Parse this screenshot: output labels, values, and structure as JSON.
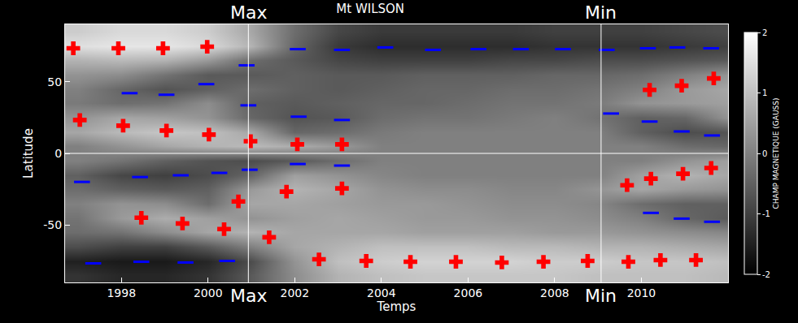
{
  "chart_data": {
    "type": "heatmap",
    "title": "Mt WILSON",
    "x_label": "Temps",
    "y_label": "Latitude",
    "xlim": [
      1996.7,
      2012.0
    ],
    "ylim": [
      -90,
      90
    ],
    "xticks": [
      1998,
      2000,
      2002,
      2004,
      2006,
      2008,
      2010
    ],
    "yticks": [
      -50,
      0,
      50
    ],
    "hline": 0,
    "epochs": [
      {
        "label": "Max",
        "x": 2000.93
      },
      {
        "label": "Min",
        "x": 2009.07
      }
    ],
    "heatmap": {
      "x": [
        1997,
        1998,
        1999,
        2000,
        2001,
        2002,
        2003,
        2004,
        2005,
        2006,
        2007,
        2008,
        2009,
        2010,
        2011,
        2012
      ],
      "y": [
        -85,
        -75,
        -65,
        -55,
        -45,
        -35,
        -25,
        -15,
        -5,
        5,
        15,
        25,
        35,
        45,
        55,
        65,
        75,
        85
      ],
      "z": [
        [
          -1.2,
          -1.4,
          -1.4,
          -1.2,
          -0.6,
          0.2,
          0.8,
          1.0,
          1.1,
          1.1,
          1.1,
          1.1,
          1.0,
          1.0,
          1.0,
          0.9
        ],
        [
          -1.5,
          -1.6,
          -1.6,
          -1.4,
          -0.8,
          0.3,
          1.0,
          1.2,
          1.3,
          1.3,
          1.3,
          1.2,
          1.2,
          1.1,
          1.1,
          1.0
        ],
        [
          -0.8,
          -1.0,
          -1.0,
          -0.6,
          0.0,
          0.6,
          0.8,
          1.0,
          1.0,
          1.0,
          0.9,
          0.9,
          0.8,
          0.8,
          0.7,
          0.6
        ],
        [
          -0.3,
          -0.2,
          0.2,
          0.6,
          0.8,
          0.6,
          0.6,
          0.6,
          0.5,
          0.5,
          0.5,
          0.4,
          0.4,
          0.3,
          0.2,
          0.1
        ],
        [
          -0.2,
          0.4,
          0.7,
          0.5,
          0.3,
          0.5,
          0.6,
          0.5,
          0.4,
          0.4,
          0.3,
          0.3,
          0.2,
          0.0,
          -0.4,
          -0.6
        ],
        [
          0.0,
          0.3,
          0.2,
          -0.3,
          0.6,
          0.6,
          0.5,
          0.4,
          0.4,
          0.3,
          0.2,
          0.2,
          0.1,
          -0.3,
          -0.5,
          -0.5
        ],
        [
          -0.3,
          -0.5,
          -0.6,
          -0.5,
          0.4,
          0.8,
          0.6,
          0.3,
          0.2,
          0.2,
          0.1,
          0.1,
          0.3,
          0.6,
          0.4,
          0.3
        ],
        [
          -0.5,
          -0.9,
          -1.0,
          -0.8,
          -0.4,
          0.5,
          0.3,
          0.1,
          0.0,
          0.0,
          0.0,
          0.0,
          0.0,
          0.5,
          0.8,
          0.6
        ],
        [
          0.0,
          -0.2,
          -0.5,
          -0.7,
          -0.8,
          -0.6,
          -0.3,
          0.0,
          0.0,
          0.0,
          0.0,
          0.0,
          0.0,
          0.0,
          0.3,
          0.5
        ],
        [
          0.0,
          0.3,
          0.6,
          0.8,
          0.9,
          0.7,
          0.4,
          0.0,
          0.0,
          0.0,
          0.0,
          0.0,
          0.0,
          0.0,
          -0.3,
          -0.4
        ],
        [
          0.6,
          0.9,
          1.1,
          1.0,
          0.6,
          -0.4,
          -0.3,
          -0.1,
          0.0,
          0.0,
          0.0,
          0.0,
          0.0,
          -0.5,
          -0.8,
          -0.7
        ],
        [
          0.3,
          0.6,
          0.5,
          0.3,
          -0.4,
          -0.7,
          -0.6,
          -0.3,
          -0.2,
          -0.2,
          -0.1,
          0.0,
          -0.2,
          -0.5,
          -0.4,
          0.3
        ],
        [
          -0.1,
          -0.3,
          -0.2,
          0.2,
          -0.5,
          -0.6,
          -0.5,
          -0.4,
          -0.4,
          -0.3,
          -0.2,
          -0.2,
          -0.1,
          0.3,
          0.4,
          0.5
        ],
        [
          0.0,
          -0.4,
          -0.7,
          -0.5,
          -0.3,
          -0.5,
          -0.6,
          -0.5,
          -0.4,
          -0.4,
          -0.3,
          -0.3,
          -0.2,
          0.0,
          0.4,
          0.6
        ],
        [
          0.3,
          0.2,
          -0.2,
          -0.6,
          -0.6,
          -0.5,
          -0.6,
          -0.6,
          -0.5,
          -0.5,
          -0.5,
          -0.4,
          -0.4,
          -0.3,
          0.0,
          0.3
        ],
        [
          0.8,
          0.9,
          0.8,
          0.4,
          -0.3,
          -0.6,
          -0.9,
          -1.0,
          -1.0,
          -1.0,
          -0.9,
          -0.9,
          -0.8,
          -0.8,
          -0.7,
          -0.6
        ],
        [
          1.5,
          1.6,
          1.6,
          1.4,
          0.8,
          -0.4,
          -1.1,
          -1.3,
          -1.3,
          -1.3,
          -1.3,
          -1.2,
          -1.2,
          -1.2,
          -1.1,
          -1.0
        ],
        [
          1.2,
          1.4,
          1.4,
          1.2,
          0.6,
          -0.3,
          -0.9,
          -1.1,
          -1.1,
          -1.1,
          -1.1,
          -1.0,
          -1.0,
          -1.0,
          -0.9,
          -0.8
        ]
      ]
    },
    "colorbar_label": "CHAMP MAGNETIQUE (GAUSS)",
    "colorbar_range": [
      -2,
      2
    ],
    "colorbar_ticks": [
      -2,
      -1,
      0,
      1,
      2
    ],
    "series": [
      {
        "type": "scatter",
        "color": "#ff0000",
        "marker": "cross",
        "x": [
          1996.89,
          1997.04,
          1997.93,
          1998.04,
          1998.96,
          1999.04,
          1999.98,
          2000.02,
          2000.98,
          2002.06,
          2003.09,
          1998.46,
          1999.41,
          2000.37,
          2000.7,
          2001.41,
          2001.81,
          2003.09,
          2002.56,
          2003.65,
          2004.67,
          2005.72,
          2006.78,
          2007.74,
          2008.76,
          2009.7,
          2010.44,
          2011.26,
          2009.67,
          2010.22,
          2010.96,
          2011.61,
          2010.19,
          2010.93,
          2011.67
        ],
        "y": [
          73.3,
          23.3,
          73.3,
          19.3,
          73.3,
          15.9,
          74.4,
          13.1,
          8.5,
          6.3,
          6.3,
          -44.9,
          -48.9,
          -52.8,
          -33.5,
          -58.5,
          -26.7,
          -24.4,
          -73.9,
          -75.0,
          -75.6,
          -75.6,
          -76.1,
          -75.6,
          -75.0,
          -75.6,
          -74.4,
          -74.4,
          -22.2,
          -17.6,
          -14.2,
          -10.2,
          44.3,
          47.2,
          52.3
        ]
      },
      {
        "type": "scatter",
        "color": "#0000ff",
        "marker": "line-ew",
        "x": [
          1997.09,
          1998.19,
          1999.04,
          1999.96,
          2000.89,
          1998.43,
          1999.37,
          2000.26,
          2000.93,
          2000.96,
          1997.35,
          1998.46,
          1999.48,
          2000.44,
          2002.07,
          2002.09,
          2002.07,
          2003.09,
          2003.09,
          2003.09,
          2004.09,
          2005.19,
          2006.24,
          2007.22,
          2008.19,
          2009.2,
          2009.3,
          2010.15,
          2010.83,
          2011.61,
          2010.19,
          2010.93,
          2011.63,
          2010.22,
          2010.93,
          2011.63
        ],
        "y": [
          -19.9,
          42.0,
          40.9,
          48.3,
          61.4,
          -16.5,
          -15.3,
          -13.6,
          33.5,
          -11.4,
          -76.7,
          -75.6,
          -76.1,
          -75.0,
          72.7,
          25.6,
          -7.4,
          72.2,
          23.3,
          -8.5,
          73.9,
          72.2,
          72.7,
          72.7,
          72.7,
          72.2,
          27.8,
          73.3,
          73.9,
          73.3,
          22.2,
          15.3,
          12.5,
          -41.5,
          -45.5,
          -47.7
        ]
      }
    ]
  }
}
